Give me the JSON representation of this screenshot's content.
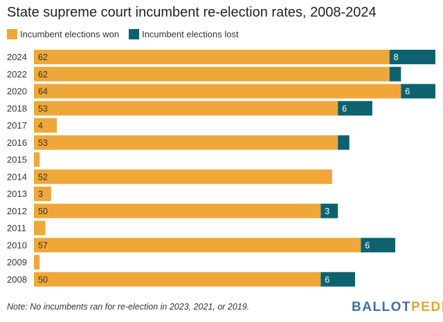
{
  "colors": {
    "won": "#f0a73a",
    "lost": "#0e6270",
    "text": "#333333"
  },
  "logo": {
    "part1": "BALLOT",
    "part2": "PEDIA"
  },
  "chart_data": {
    "type": "bar",
    "orientation": "horizontal",
    "stacked": true,
    "title": "State supreme court incumbent re-election rates, 2008-2024",
    "legend": [
      "Incumbent elections won",
      "Incumbent elections lost"
    ],
    "legend_position": "top-left",
    "categories": [
      "2024",
      "2022",
      "2020",
      "2018",
      "2017",
      "2016",
      "2015",
      "2014",
      "2013",
      "2012",
      "2011",
      "2010",
      "2009",
      "2008"
    ],
    "series": [
      {
        "name": "Incumbent elections won",
        "values": [
          62,
          62,
          64,
          53,
          4,
          53,
          1,
          52,
          3,
          50,
          2,
          57,
          1,
          50
        ],
        "labels": [
          "62",
          "62",
          "64",
          "53",
          "4",
          "53",
          "",
          "52",
          "3",
          "50",
          "",
          "57",
          "",
          "50"
        ]
      },
      {
        "name": "Incumbent elections lost",
        "values": [
          8,
          2,
          6,
          6,
          0,
          2,
          0,
          0,
          0,
          3,
          0,
          6,
          0,
          6
        ],
        "labels": [
          "8",
          "",
          "6",
          "6",
          "",
          "",
          "",
          "",
          "",
          "3",
          "",
          "6",
          "",
          "6"
        ]
      }
    ],
    "xlim": [
      0,
      70
    ],
    "grid": false,
    "note": "Note: No incumbents ran for re-election in 2023, 2021, or 2019."
  }
}
